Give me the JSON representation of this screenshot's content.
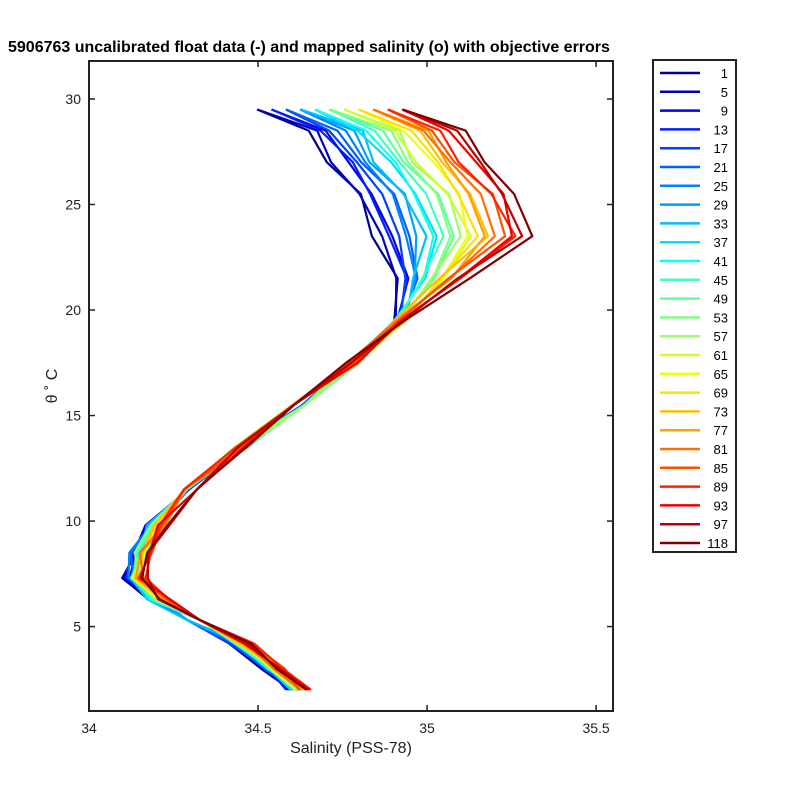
{
  "chart_data": {
    "type": "line",
    "title": "5906763 uncalibrated float data (-) and mapped salinity (o) with objective errors",
    "xlabel": "Salinity (PSS-78)",
    "ylabel": "θ ˚ C",
    "xlim": [
      34,
      35.55
    ],
    "ylim": [
      1.0,
      31.8
    ],
    "xticks": [
      "34",
      "34.5",
      "35",
      "35.5"
    ],
    "yticks": [
      "5",
      "10",
      "15",
      "20",
      "25",
      "30"
    ],
    "xtick_values": [
      34,
      34.5,
      35,
      35.5
    ],
    "ytick_values": [
      5,
      10,
      15,
      20,
      25,
      30
    ],
    "grid": false,
    "colormap": "jet",
    "legend_position": "outside-right",
    "legend": [
      "1",
      "5",
      "9",
      "13",
      "17",
      "21",
      "25",
      "29",
      "33",
      "37",
      "41",
      "45",
      "49",
      "53",
      "57",
      "61",
      "65",
      "69",
      "73",
      "77",
      "81",
      "85",
      "89",
      "93",
      "97",
      "118"
    ],
    "legend_colors": [
      "#00008f",
      "#0000bf",
      "#0000ef",
      "#0020ff",
      "#0040ff",
      "#0060ff",
      "#0080ff",
      "#009fff",
      "#00bfff",
      "#00dfff",
      "#10ffef",
      "#40ffbf",
      "#60ff9f",
      "#80ff80",
      "#9fff60",
      "#cfff30",
      "#efff10",
      "#ffdf00",
      "#ffbf00",
      "#ff9f00",
      "#ff7000",
      "#ff5000",
      "#ff2000",
      "#ef0000",
      "#bf0000",
      "#800000"
    ],
    "base_profile": [
      {
        "x": 34.62,
        "y": 2.0
      },
      {
        "x": 34.55,
        "y": 3.0
      },
      {
        "x": 34.45,
        "y": 4.2
      },
      {
        "x": 34.32,
        "y": 5.3
      },
      {
        "x": 34.2,
        "y": 6.3
      },
      {
        "x": 34.14,
        "y": 7.3
      },
      {
        "x": 34.15,
        "y": 8.5
      },
      {
        "x": 34.2,
        "y": 9.8
      },
      {
        "x": 34.3,
        "y": 11.5
      },
      {
        "x": 34.45,
        "y": 13.5
      },
      {
        "x": 34.62,
        "y": 15.5
      },
      {
        "x": 34.78,
        "y": 17.5
      },
      {
        "x": 34.92,
        "y": 19.5
      },
      {
        "x": 35.0,
        "y": 21.5
      },
      {
        "x": 35.05,
        "y": 23.5
      },
      {
        "x": 35.0,
        "y": 25.5
      },
      {
        "x": 34.92,
        "y": 27.0
      },
      {
        "x": 34.85,
        "y": 28.5
      },
      {
        "x": 34.7,
        "y": 29.5
      }
    ]
  }
}
